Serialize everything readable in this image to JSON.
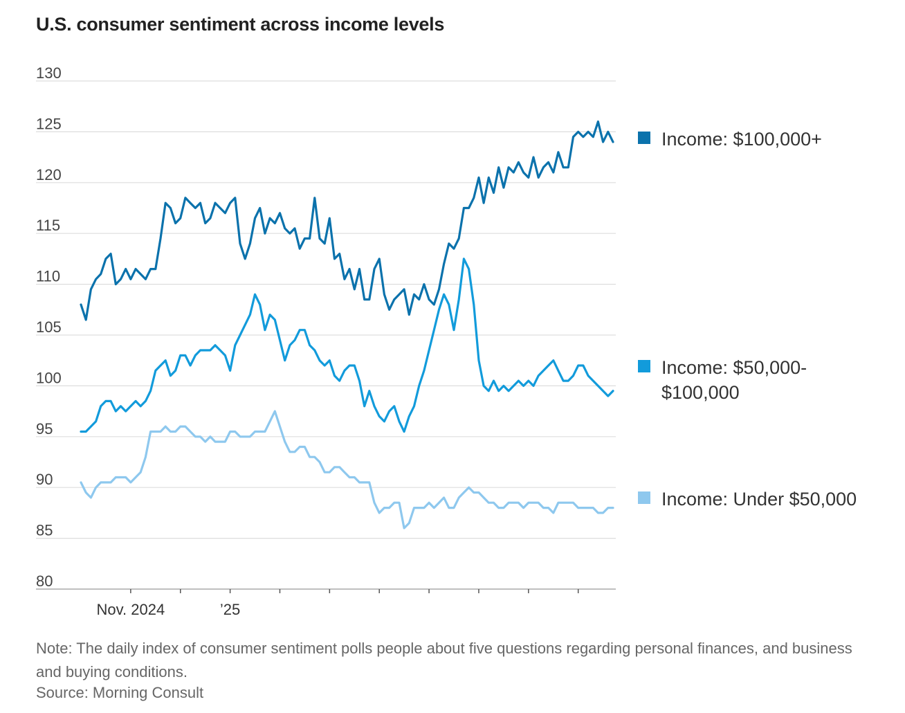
{
  "chart_data": {
    "type": "line",
    "title": "U.S. consumer sentiment across income levels",
    "xlabel": "",
    "ylabel": "",
    "ylim": [
      80,
      130
    ],
    "yticks": [
      130,
      125,
      120,
      115,
      110,
      105,
      100,
      95,
      90,
      85,
      80
    ],
    "x_tick_labels": [
      {
        "label": "Nov. 2024",
        "index": 10
      },
      {
        "label": "’25",
        "index": 30
      }
    ],
    "x_minor_tick_indices": [
      20,
      40,
      50,
      60,
      70,
      80,
      90,
      100
    ],
    "x_count": 108,
    "series": [
      {
        "name": "Income: $100,000+",
        "label_lines": [
          "Income: $100,000+"
        ],
        "color": "#0b72ac",
        "values": [
          108,
          106.5,
          109.5,
          110.5,
          111,
          112.5,
          113,
          110,
          110.5,
          111.5,
          110.5,
          111.5,
          111,
          110.5,
          111.5,
          111.5,
          114.5,
          118,
          117.5,
          116,
          116.5,
          118.5,
          118,
          117.5,
          118,
          116,
          116.5,
          118,
          117.5,
          117,
          118,
          118.5,
          114,
          112.5,
          114,
          116.5,
          117.5,
          115,
          116.5,
          116,
          117,
          115.5,
          115,
          115.5,
          113.5,
          114.5,
          114.5,
          118.5,
          114.5,
          114,
          116.5,
          112.5,
          113,
          110.5,
          111.5,
          109.5,
          111.5,
          108.5,
          108.5,
          111.5,
          112.5,
          109,
          107.5,
          108.5,
          109,
          109.5,
          107,
          109,
          108.5,
          110,
          108.5,
          108,
          109.5,
          112,
          114,
          113.5,
          114.5,
          117.5,
          117.5,
          118.5,
          120.5,
          118,
          120.5,
          119,
          121.5,
          119.5,
          121.5,
          121,
          122,
          121,
          120.5,
          122.5,
          120.5,
          121.5,
          122,
          121,
          123,
          121.5,
          121.5,
          124.5,
          125,
          124.5,
          125,
          124.5,
          126,
          124,
          125,
          124
        ]
      },
      {
        "name": "Income: $50,000-$100,000",
        "label_lines": [
          "Income: $50,000-",
          "$100,000"
        ],
        "color": "#129bdb",
        "values": [
          95.5,
          95.5,
          96,
          96.5,
          98,
          98.5,
          98.5,
          97.5,
          98,
          97.5,
          98,
          98.5,
          98,
          98.5,
          99.5,
          101.5,
          102,
          102.5,
          101,
          101.5,
          103,
          103,
          102,
          103,
          103.5,
          103.5,
          103.5,
          104,
          103.5,
          103,
          101.5,
          104,
          105,
          106,
          107,
          109,
          108,
          105.5,
          107,
          106.5,
          104.5,
          102.5,
          104,
          104.5,
          105.5,
          105.5,
          104,
          103.5,
          102.5,
          102,
          102.5,
          101,
          100.5,
          101.5,
          102,
          102,
          100.5,
          98,
          99.5,
          98,
          97,
          96.5,
          97.5,
          98,
          96.5,
          95.5,
          97,
          98,
          100,
          101.5,
          103.5,
          105.5,
          107.5,
          109,
          108,
          105.5,
          108.5,
          112.5,
          111.5,
          108,
          102.5,
          100,
          99.5,
          100.5,
          99.5,
          100,
          99.5,
          100,
          100.5,
          100,
          100.5,
          100,
          101,
          101.5,
          102,
          102.5,
          101.5,
          100.5,
          100.5,
          101,
          102,
          102,
          101,
          100.5,
          100,
          99.5,
          99,
          99.5
        ]
      },
      {
        "name": "Income: Under $50,000",
        "label_lines": [
          "Income: Under $50,000"
        ],
        "color": "#8ec8ee",
        "values": [
          90.5,
          89.5,
          89,
          90,
          90.5,
          90.5,
          90.5,
          91,
          91,
          91,
          90.5,
          91,
          91.5,
          93,
          95.5,
          95.5,
          95.5,
          96,
          95.5,
          95.5,
          96,
          96,
          95.5,
          95,
          95,
          94.5,
          95,
          94.5,
          94.5,
          94.5,
          95.5,
          95.5,
          95,
          95,
          95,
          95.5,
          95.5,
          95.5,
          96.5,
          97.5,
          96,
          94.5,
          93.5,
          93.5,
          94,
          94,
          93,
          93,
          92.5,
          91.5,
          91.5,
          92,
          92,
          91.5,
          91,
          91,
          90.5,
          90.5,
          90.5,
          88.5,
          87.5,
          88,
          88,
          88.5,
          88.5,
          86,
          86.5,
          88,
          88,
          88,
          88.5,
          88,
          88.5,
          89,
          88,
          88,
          89,
          89.5,
          90,
          89.5,
          89.5,
          89,
          88.5,
          88.5,
          88,
          88,
          88.5,
          88.5,
          88.5,
          88,
          88.5,
          88.5,
          88.5,
          88,
          88,
          87.5,
          88.5,
          88.5,
          88.5,
          88.5,
          88,
          88,
          88,
          88,
          87.5,
          87.5,
          88,
          88
        ]
      }
    ]
  },
  "note": "Note: The daily index of consumer sentiment polls people about five questions regarding personal finances, and business and buying conditions.",
  "source": "Source: Morning Consult"
}
